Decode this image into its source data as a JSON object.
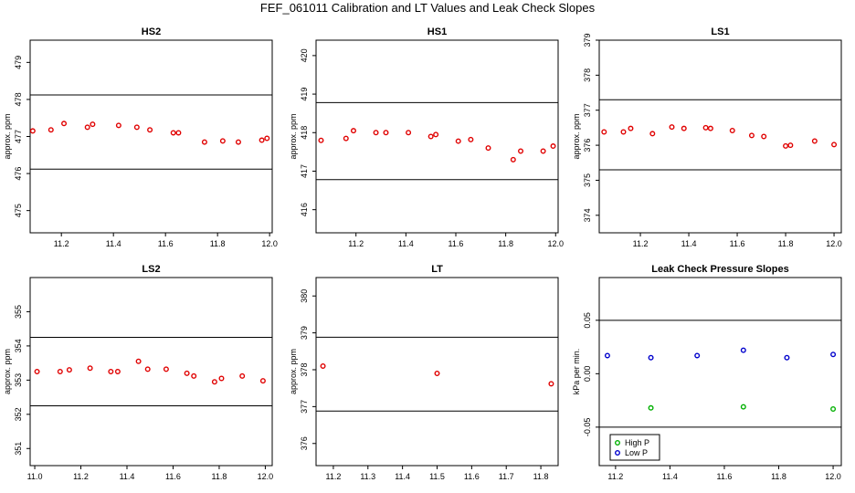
{
  "title": "FEF_061011  Calibration and LT Values and Leak Check Slopes",
  "chart_data": [
    {
      "type": "scatter",
      "title": "HS2",
      "ylabel": "approx. ppm",
      "xlim": [
        11.08,
        12.01
      ],
      "ylim": [
        474.4,
        479.6
      ],
      "xticks": [
        11.2,
        11.4,
        11.6,
        11.8,
        12.0
      ],
      "xtick_labels": [
        "11.2",
        "11.4",
        "11.6",
        "11.8",
        "12.0"
      ],
      "yticks": [
        475,
        476,
        477,
        478,
        479
      ],
      "ytick_labels": [
        "475",
        "476",
        "477",
        "478",
        "479"
      ],
      "hlines": [
        478.12,
        476.12
      ],
      "series": [
        {
          "color": "#e00000",
          "x": [
            11.09,
            11.16,
            11.21,
            11.3,
            11.32,
            11.42,
            11.49,
            11.54,
            11.63,
            11.65,
            11.75,
            11.82,
            11.88,
            11.97,
            11.99
          ],
          "y": [
            477.15,
            477.18,
            477.35,
            477.25,
            477.33,
            477.3,
            477.25,
            477.18,
            477.1,
            477.1,
            476.85,
            476.88,
            476.85,
            476.9,
            476.95
          ]
        }
      ]
    },
    {
      "type": "scatter",
      "title": "HS1",
      "ylabel": "approx. ppm",
      "xlim": [
        11.04,
        12.01
      ],
      "ylim": [
        415.4,
        420.4
      ],
      "xticks": [
        11.2,
        11.4,
        11.6,
        11.8,
        12.0
      ],
      "xtick_labels": [
        "11.2",
        "11.4",
        "11.6",
        "11.8",
        "12.0"
      ],
      "yticks": [
        416,
        417,
        418,
        419,
        420
      ],
      "ytick_labels": [
        "416",
        "417",
        "418",
        "419",
        "420"
      ],
      "hlines": [
        418.78,
        416.78
      ],
      "series": [
        {
          "color": "#e00000",
          "x": [
            11.06,
            11.16,
            11.19,
            11.28,
            11.32,
            11.41,
            11.5,
            11.52,
            11.61,
            11.66,
            11.73,
            11.83,
            11.86,
            11.95,
            11.99
          ],
          "y": [
            417.8,
            417.85,
            418.05,
            418.0,
            418.0,
            418.0,
            417.9,
            417.95,
            417.78,
            417.82,
            417.6,
            417.3,
            417.52,
            417.52,
            417.65
          ]
        }
      ]
    },
    {
      "type": "scatter",
      "title": "LS1",
      "ylabel": "approx. ppm",
      "xlim": [
        11.03,
        12.03
      ],
      "ylim": [
        373.5,
        379.0
      ],
      "xticks": [
        11.2,
        11.4,
        11.6,
        11.8,
        12.0
      ],
      "xtick_labels": [
        "11.2",
        "11.4",
        "11.6",
        "11.8",
        "12.0"
      ],
      "yticks": [
        374,
        375,
        376,
        377,
        378,
        379
      ],
      "ytick_labels": [
        "374",
        "375",
        "376",
        "377",
        "378",
        "379"
      ],
      "hlines": [
        377.3,
        375.3
      ],
      "series": [
        {
          "color": "#e00000",
          "x": [
            11.05,
            11.13,
            11.16,
            11.25,
            11.33,
            11.38,
            11.47,
            11.49,
            11.58,
            11.66,
            11.71,
            11.8,
            11.82,
            11.92,
            12.0
          ],
          "y": [
            376.38,
            376.38,
            376.48,
            376.33,
            376.52,
            376.48,
            376.5,
            376.48,
            376.42,
            376.28,
            376.25,
            375.98,
            376.0,
            376.12,
            376.02
          ]
        }
      ]
    },
    {
      "type": "scatter",
      "title": "LS2",
      "ylabel": "approx. ppm",
      "xlim": [
        10.98,
        12.03
      ],
      "ylim": [
        350.5,
        356.0
      ],
      "xticks": [
        11.0,
        11.2,
        11.4,
        11.6,
        11.8,
        12.0
      ],
      "xtick_labels": [
        "11.0",
        "11.2",
        "11.4",
        "11.6",
        "11.8",
        "12.0"
      ],
      "yticks": [
        351,
        352,
        353,
        354,
        355
      ],
      "ytick_labels": [
        "351",
        "352",
        "353",
        "354",
        "355"
      ],
      "hlines": [
        354.25,
        352.25
      ],
      "series": [
        {
          "color": "#e00000",
          "x": [
            11.01,
            11.11,
            11.15,
            11.24,
            11.33,
            11.36,
            11.45,
            11.49,
            11.57,
            11.66,
            11.69,
            11.78,
            11.81,
            11.9,
            11.99
          ],
          "y": [
            353.25,
            353.25,
            353.3,
            353.35,
            353.25,
            353.25,
            353.55,
            353.32,
            353.32,
            353.2,
            353.12,
            352.95,
            353.05,
            353.12,
            352.98
          ]
        }
      ]
    },
    {
      "type": "scatter",
      "title": "LT",
      "ylabel": "approx. ppm",
      "xlim": [
        11.15,
        11.85
      ],
      "ylim": [
        375.4,
        380.5
      ],
      "xticks": [
        11.2,
        11.3,
        11.4,
        11.5,
        11.6,
        11.7,
        11.8
      ],
      "xtick_labels": [
        "11.2",
        "11.3",
        "11.4",
        "11.5",
        "11.6",
        "11.7",
        "11.8"
      ],
      "yticks": [
        376,
        377,
        378,
        379,
        380
      ],
      "ytick_labels": [
        "376",
        "377",
        "378",
        "379",
        "380"
      ],
      "hlines": [
        378.88,
        376.88
      ],
      "series": [
        {
          "color": "#e00000",
          "x": [
            11.17,
            11.5,
            11.83
          ],
          "y": [
            378.1,
            377.9,
            377.62
          ]
        }
      ]
    },
    {
      "type": "scatter",
      "title": "Leak Check Pressure Slopes",
      "ylabel": "kPa per min.",
      "xlim": [
        11.14,
        12.03
      ],
      "ylim": [
        -0.086,
        0.09
      ],
      "xticks": [
        11.2,
        11.4,
        11.6,
        11.8,
        12.0
      ],
      "xtick_labels": [
        "11.2",
        "11.4",
        "11.6",
        "11.8",
        "12.0"
      ],
      "yticks": [
        -0.05,
        0.0,
        0.05
      ],
      "ytick_labels": [
        "-0.05",
        "0.00",
        "0.05"
      ],
      "hlines": [
        0.05,
        -0.05
      ],
      "legend": {
        "position": "bottom-left",
        "entries": [
          "High P",
          "Low P"
        ]
      },
      "series": [
        {
          "name": "High P",
          "color": "#00b000",
          "x": [
            11.33,
            11.67,
            12.0
          ],
          "y": [
            -0.032,
            -0.031,
            -0.033
          ]
        },
        {
          "name": "Low P",
          "color": "#0000cc",
          "x": [
            11.17,
            11.33,
            11.5,
            11.67,
            11.83,
            12.0
          ],
          "y": [
            0.017,
            0.015,
            0.017,
            0.022,
            0.015,
            0.018
          ]
        }
      ]
    }
  ]
}
